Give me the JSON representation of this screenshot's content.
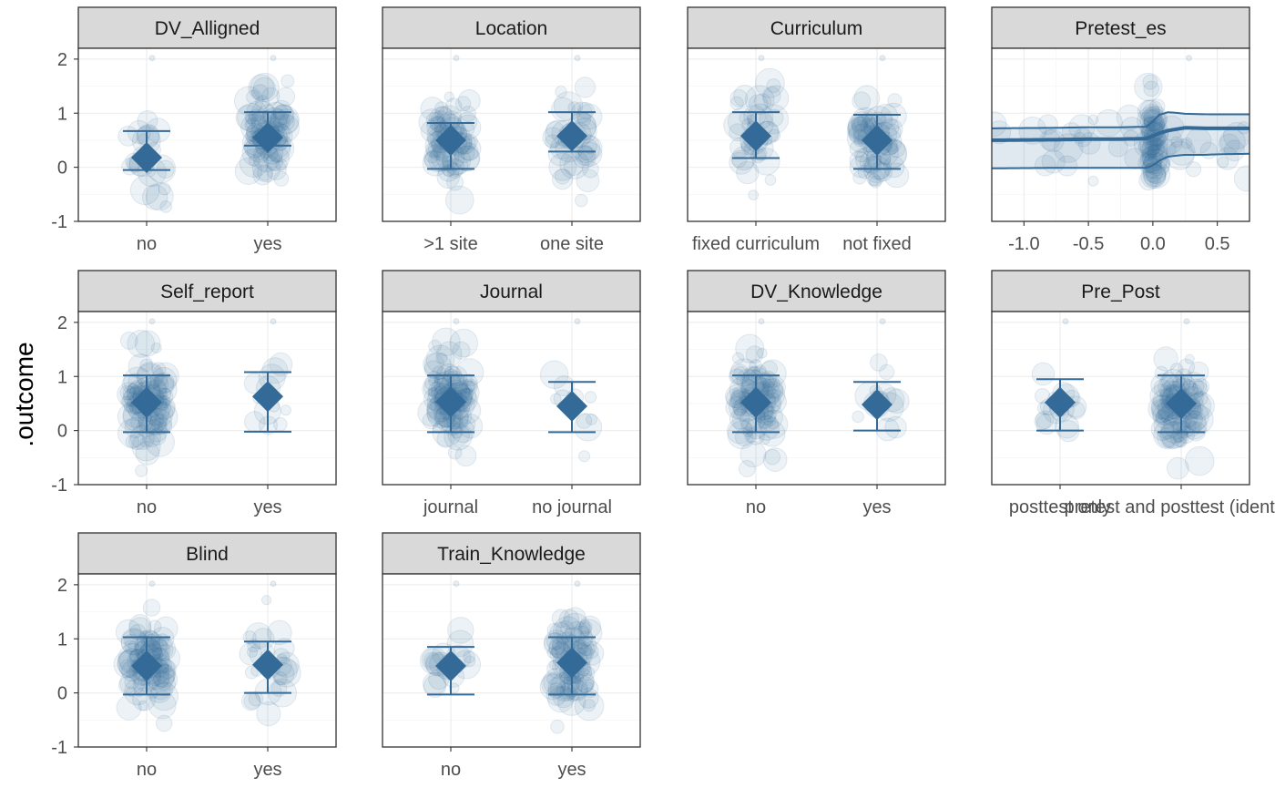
{
  "chart_data": {
    "type": "scatter",
    "ylabel": ".outcome",
    "ylim": [
      -1,
      2.2
    ],
    "y_ticks": [
      "-1",
      "0",
      "1",
      "2"
    ],
    "colors": {
      "point": "#336a98",
      "strip": "#d9d9d9",
      "border": "#333333",
      "grid": "#ebebeb"
    },
    "grid": true,
    "panels": [
      {
        "title": "DV_Alligned",
        "kind": "categorical",
        "categories": [
          "no",
          "yes"
        ],
        "estimates": [
          {
            "category": "no",
            "mean": 0.18,
            "lower": -0.05,
            "upper": 0.67
          },
          {
            "category": "yes",
            "mean": 0.55,
            "lower": 0.4,
            "upper": 1.02
          }
        ],
        "points_n": [
          24,
          90
        ]
      },
      {
        "title": "Location",
        "kind": "categorical",
        "categories": [
          ">1 site",
          "one site"
        ],
        "estimates": [
          {
            "category": ">1 site",
            "mean": 0.5,
            "lower": -0.03,
            "upper": 0.82
          },
          {
            "category": "one site",
            "mean": 0.58,
            "lower": 0.29,
            "upper": 1.02
          }
        ],
        "points_n": [
          80,
          40
        ]
      },
      {
        "title": "Curriculum",
        "kind": "categorical",
        "categories": [
          "fixed curriculum",
          "not fixed"
        ],
        "estimates": [
          {
            "category": "fixed curriculum",
            "mean": 0.58,
            "lower": 0.17,
            "upper": 1.02
          },
          {
            "category": "not fixed",
            "mean": 0.5,
            "lower": -0.03,
            "upper": 0.97
          }
        ],
        "points_n": [
          45,
          75
        ]
      },
      {
        "title": "Pretest_es",
        "kind": "continuous",
        "x_ticks": [
          "-1.0",
          "-0.5",
          "0.0",
          "0.5"
        ],
        "xlim": [
          -1.25,
          0.75
        ],
        "x_tick_values": [
          -1.0,
          -0.5,
          0.0,
          0.5
        ],
        "curve": {
          "x": [
            -1.25,
            -0.75,
            -0.5,
            -0.25,
            -0.05,
            0.0,
            0.05,
            0.12,
            0.25,
            0.4,
            0.5,
            0.75
          ],
          "mean": [
            0.5,
            0.51,
            0.52,
            0.52,
            0.53,
            0.58,
            0.63,
            0.68,
            0.73,
            0.72,
            0.72,
            0.72
          ],
          "upper": [
            0.72,
            0.73,
            0.74,
            0.74,
            0.75,
            0.85,
            0.97,
            1.02,
            0.99,
            0.98,
            0.98,
            0.98
          ],
          "lower": [
            -0.02,
            -0.01,
            -0.01,
            -0.01,
            -0.01,
            0.03,
            0.12,
            0.2,
            0.23,
            0.23,
            0.24,
            0.25
          ]
        },
        "points_n": 110
      },
      {
        "title": "Self_report",
        "kind": "categorical",
        "categories": [
          "no",
          "yes"
        ],
        "estimates": [
          {
            "category": "no",
            "mean": 0.52,
            "lower": -0.03,
            "upper": 1.02
          },
          {
            "category": "yes",
            "mean": 0.63,
            "lower": -0.02,
            "upper": 1.08
          }
        ],
        "points_n": [
          105,
          12
        ]
      },
      {
        "title": "Journal",
        "kind": "categorical",
        "categories": [
          "journal",
          "no journal"
        ],
        "estimates": [
          {
            "category": "journal",
            "mean": 0.53,
            "lower": -0.03,
            "upper": 1.02
          },
          {
            "category": "no journal",
            "mean": 0.45,
            "lower": -0.03,
            "upper": 0.9
          }
        ],
        "points_n": [
          105,
          10
        ]
      },
      {
        "title": "DV_Knowledge",
        "kind": "categorical",
        "categories": [
          "no",
          "yes"
        ],
        "estimates": [
          {
            "category": "no",
            "mean": 0.52,
            "lower": -0.03,
            "upper": 1.02
          },
          {
            "category": "yes",
            "mean": 0.48,
            "lower": 0.0,
            "upper": 0.9
          }
        ],
        "points_n": [
          100,
          14
        ]
      },
      {
        "title": "Pre_Post",
        "kind": "categorical",
        "categories": [
          "posttest only",
          "pretest and posttest (identical)"
        ],
        "tick_labels": [
          "posttest only",
          "pretest and posttest (identica"
        ],
        "estimates": [
          {
            "category": "posttest only",
            "mean": 0.52,
            "lower": 0.0,
            "upper": 0.95
          },
          {
            "category": "pretest and posttest (identical)",
            "mean": 0.5,
            "lower": -0.03,
            "upper": 1.02
          }
        ],
        "points_n": [
          20,
          95
        ]
      },
      {
        "title": "Blind",
        "kind": "categorical",
        "categories": [
          "no",
          "yes"
        ],
        "estimates": [
          {
            "category": "no",
            "mean": 0.5,
            "lower": -0.03,
            "upper": 1.03
          },
          {
            "category": "yes",
            "mean": 0.52,
            "lower": 0.0,
            "upper": 0.95
          }
        ],
        "points_n": [
          95,
          30
        ]
      },
      {
        "title": "Train_Knowledge",
        "kind": "categorical",
        "categories": [
          "no",
          "yes"
        ],
        "estimates": [
          {
            "category": "no",
            "mean": 0.5,
            "lower": -0.03,
            "upper": 0.85
          },
          {
            "category": "yes",
            "mean": 0.56,
            "lower": -0.03,
            "upper": 1.03
          }
        ],
        "points_n": [
          22,
          95
        ]
      }
    ]
  }
}
